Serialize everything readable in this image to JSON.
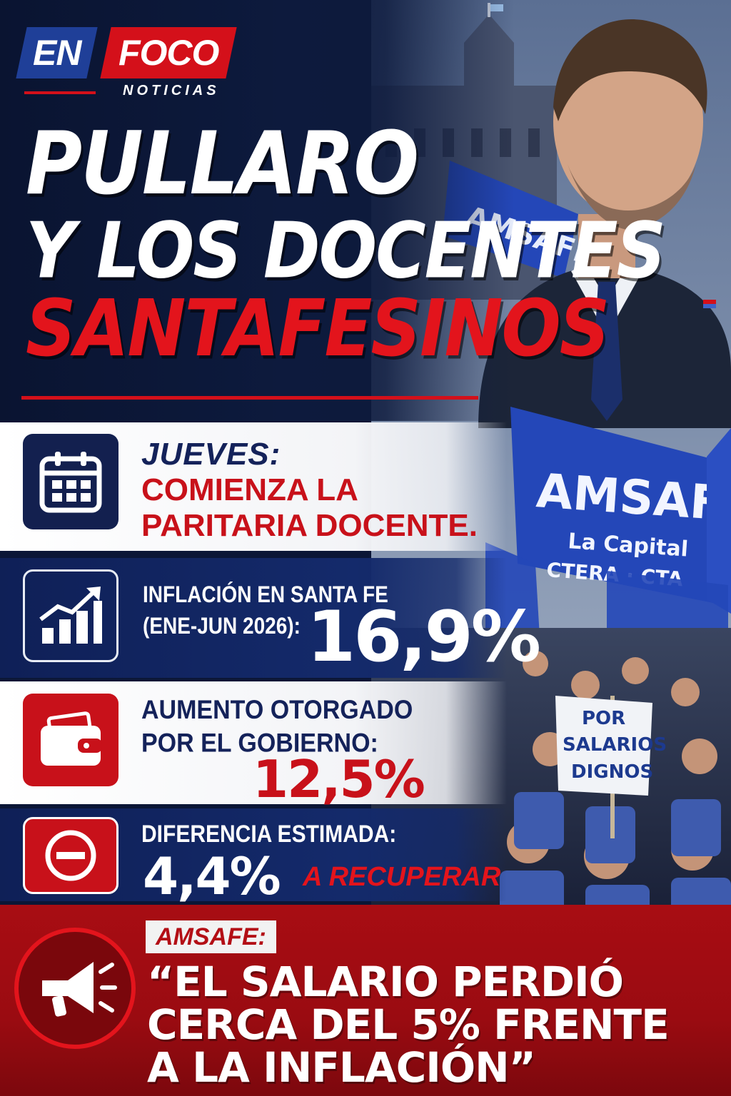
{
  "logo": {
    "en": "EN",
    "foco": "FOCO",
    "noticias": "NOTICIAS"
  },
  "headline": {
    "line1": "PULLARO",
    "line2": "Y LOS DOCENTES",
    "line3": "SANTAFESINOS"
  },
  "photo": {
    "banner_top": "AMSAFE",
    "banner_main_title": "AMSAFE",
    "banner_main_sub": "La Capital",
    "banner_logos": "CTERA · CTA",
    "sign": [
      "POR",
      "SALARIOS",
      "DIGNOS"
    ]
  },
  "rows": {
    "schedule": {
      "icon": "calendar-icon",
      "day": "JUEVES:",
      "text_line1": "COMIENZA LA",
      "text_line2": "PARITARIA DOCENTE."
    },
    "inflation": {
      "icon": "chart-growth-icon",
      "label_line1": "INFLACIÓN EN SANTA FE",
      "label_line2": "(ENE-JUN 2026):",
      "value": "16,9%"
    },
    "raise": {
      "icon": "wallet-icon",
      "label_line1": "AUMENTO OTORGADO",
      "label_line2": "POR EL GOBIERNO:",
      "value": "12,5%"
    },
    "difference": {
      "icon": "minus-circle-icon",
      "label": "DIFERENCIA ESTIMADA:",
      "value": "4,4%",
      "extra": "A RECUPERAR"
    }
  },
  "quote": {
    "icon": "megaphone-icon",
    "source": "AMSAFE:",
    "line1": "“EL SALARIO PERDIÓ",
    "line2": "CERCA DEL 5% FRENTE",
    "line3": "A LA INFLACIÓN”"
  },
  "colors": {
    "navy": "#0f2057",
    "red": "#c8111a",
    "white": "#ffffff",
    "banner_blue": "#2447b8"
  }
}
